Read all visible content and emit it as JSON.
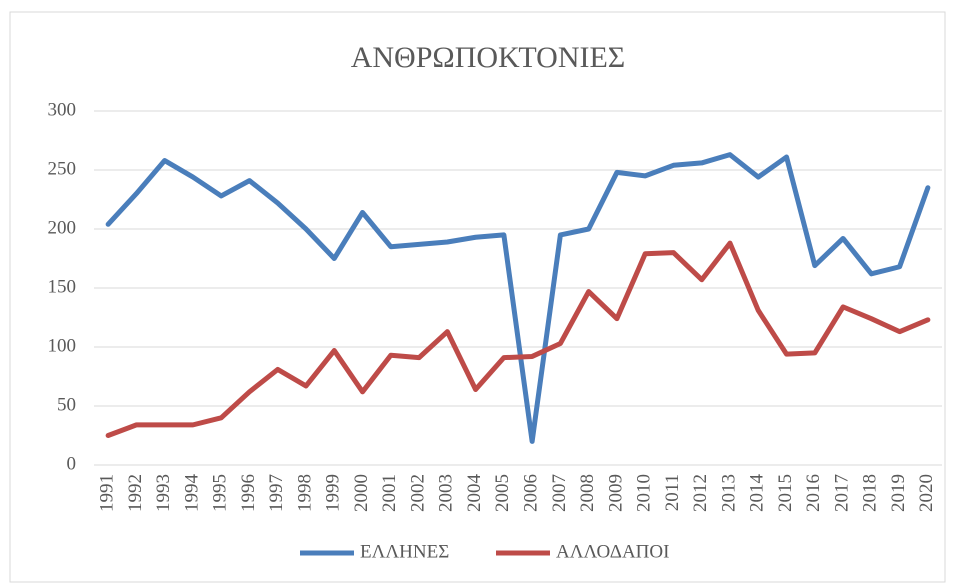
{
  "chart_data": {
    "type": "line",
    "title": "ΑΝΘΡΩΠΟΚΤΟΝΙΕΣ",
    "categories": [
      "1991",
      "1992",
      "1993",
      "1994",
      "1995",
      "1996",
      "1997",
      "1998",
      "1999",
      "2000",
      "2001",
      "2002",
      "2003",
      "2004",
      "2005",
      "2006",
      "2007",
      "2008",
      "2009",
      "2010",
      "2011",
      "2012",
      "2013",
      "2014",
      "2015",
      "2016",
      "2017",
      "2018",
      "2019",
      "2020"
    ],
    "series": [
      {
        "name": "ΕΛΛΗΝΕΣ",
        "color": "#4a7ebb",
        "values": [
          204,
          230,
          258,
          244,
          228,
          241,
          222,
          200,
          175,
          214,
          185,
          187,
          189,
          193,
          195,
          20,
          195,
          200,
          248,
          245,
          254,
          256,
          263,
          244,
          261,
          169,
          192,
          162,
          168,
          235
        ]
      },
      {
        "name": "ΑΛΛΟΔΑΠΟΙ",
        "color": "#be4b48",
        "values": [
          25,
          34,
          34,
          34,
          40,
          62,
          81,
          67,
          97,
          62,
          93,
          91,
          113,
          64,
          91,
          92,
          103,
          147,
          124,
          179,
          180,
          157,
          188,
          131,
          94,
          95,
          134,
          124,
          113,
          123
        ]
      }
    ],
    "ylim": [
      0,
      300
    ],
    "yticks": [
      0,
      50,
      100,
      150,
      200,
      250,
      300
    ],
    "grid": true,
    "legend": "bottom"
  }
}
